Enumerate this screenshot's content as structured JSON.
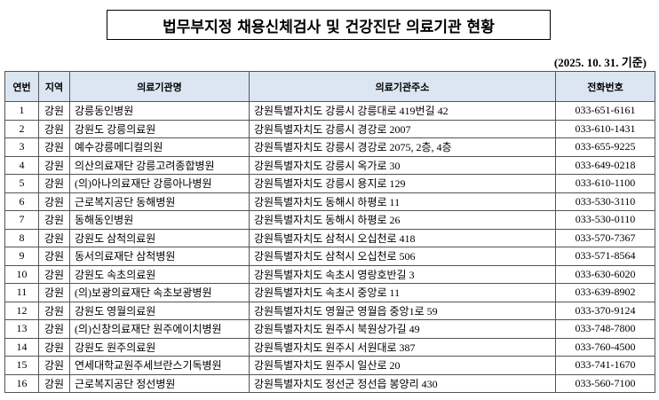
{
  "header": {
    "title": "법무부지정 채용신체검사 및 건강진단 의료기관 현황",
    "basis": "(2025. 10. 31. 기준)"
  },
  "table": {
    "columns": [
      "연번",
      "지역",
      "의료기관명",
      "의료기관주소",
      "전화번호"
    ],
    "rows": [
      [
        "1",
        "강원",
        "강릉동인병원",
        "강원특별자치도 강릉시 강릉대로 419번길 42",
        "033-651-6161"
      ],
      [
        "2",
        "강원",
        "강원도 강릉의료원",
        "강원특별자치도 강릉시 경강로 2007",
        "033-610-1431"
      ],
      [
        "3",
        "강원",
        "예수강릉메디컬의원",
        "강원특별자치도 강릉시 경강로 2075, 2층, 4층",
        "033-655-9225"
      ],
      [
        "4",
        "강원",
        "의산의료재단 강릉고려종합병원",
        "강원특별자치도 강릉시 옥가로 30",
        "033-649-0218"
      ],
      [
        "5",
        "강원",
        "(의)아나의료재단 강릉아나병원",
        "강원특별자치도 강릉시 용지로 129",
        "033-610-1100"
      ],
      [
        "6",
        "강원",
        "근로복지공단 동해병원",
        "강원특별자치도 동해시 하평로 11",
        "033-530-3110"
      ],
      [
        "7",
        "강원",
        "동해동인병원",
        "강원특별자치도 동해시 하평로 26",
        "033-530-0110"
      ],
      [
        "8",
        "강원",
        "강원도 삼척의료원",
        "강원특별자치도 삼척시 오십천로 418",
        "033-570-7367"
      ],
      [
        "9",
        "강원",
        "동서의료재단 삼척병원",
        "강원특별자치도 삼척시 오십천로 506",
        "033-571-8564"
      ],
      [
        "10",
        "강원",
        "강원도 속초의료원",
        "강원특별자치도 속초시 영랑호반길 3",
        "033-630-6020"
      ],
      [
        "11",
        "강원",
        "(의)보광의료재단 속초보광병원",
        "강원특별자치도 속초시 중앙로 11",
        "033-639-8902"
      ],
      [
        "12",
        "강원",
        "강원도 영월의료원",
        "강원특별자치도 영월군 영월읍 중앙1로 59",
        "033-370-9124"
      ],
      [
        "13",
        "강원",
        "(의)신창의료재단 원주에이치병원",
        "강원특별자치도 원주시 북원상가길 49",
        "033-748-7800"
      ],
      [
        "14",
        "강원",
        "강원도 원주의료원",
        "강원특별자치도 원주시 서원대로 387",
        "033-760-4500"
      ],
      [
        "15",
        "강원",
        "연세대학교원주세브란스기독병원",
        "강원특별자치도 원주시 일산로 20",
        "033-741-1670"
      ],
      [
        "16",
        "강원",
        "근로복지공단 정선병원",
        "강원특별자치도 정선군 정선읍 봉양리 430",
        "033-560-7100"
      ]
    ]
  }
}
